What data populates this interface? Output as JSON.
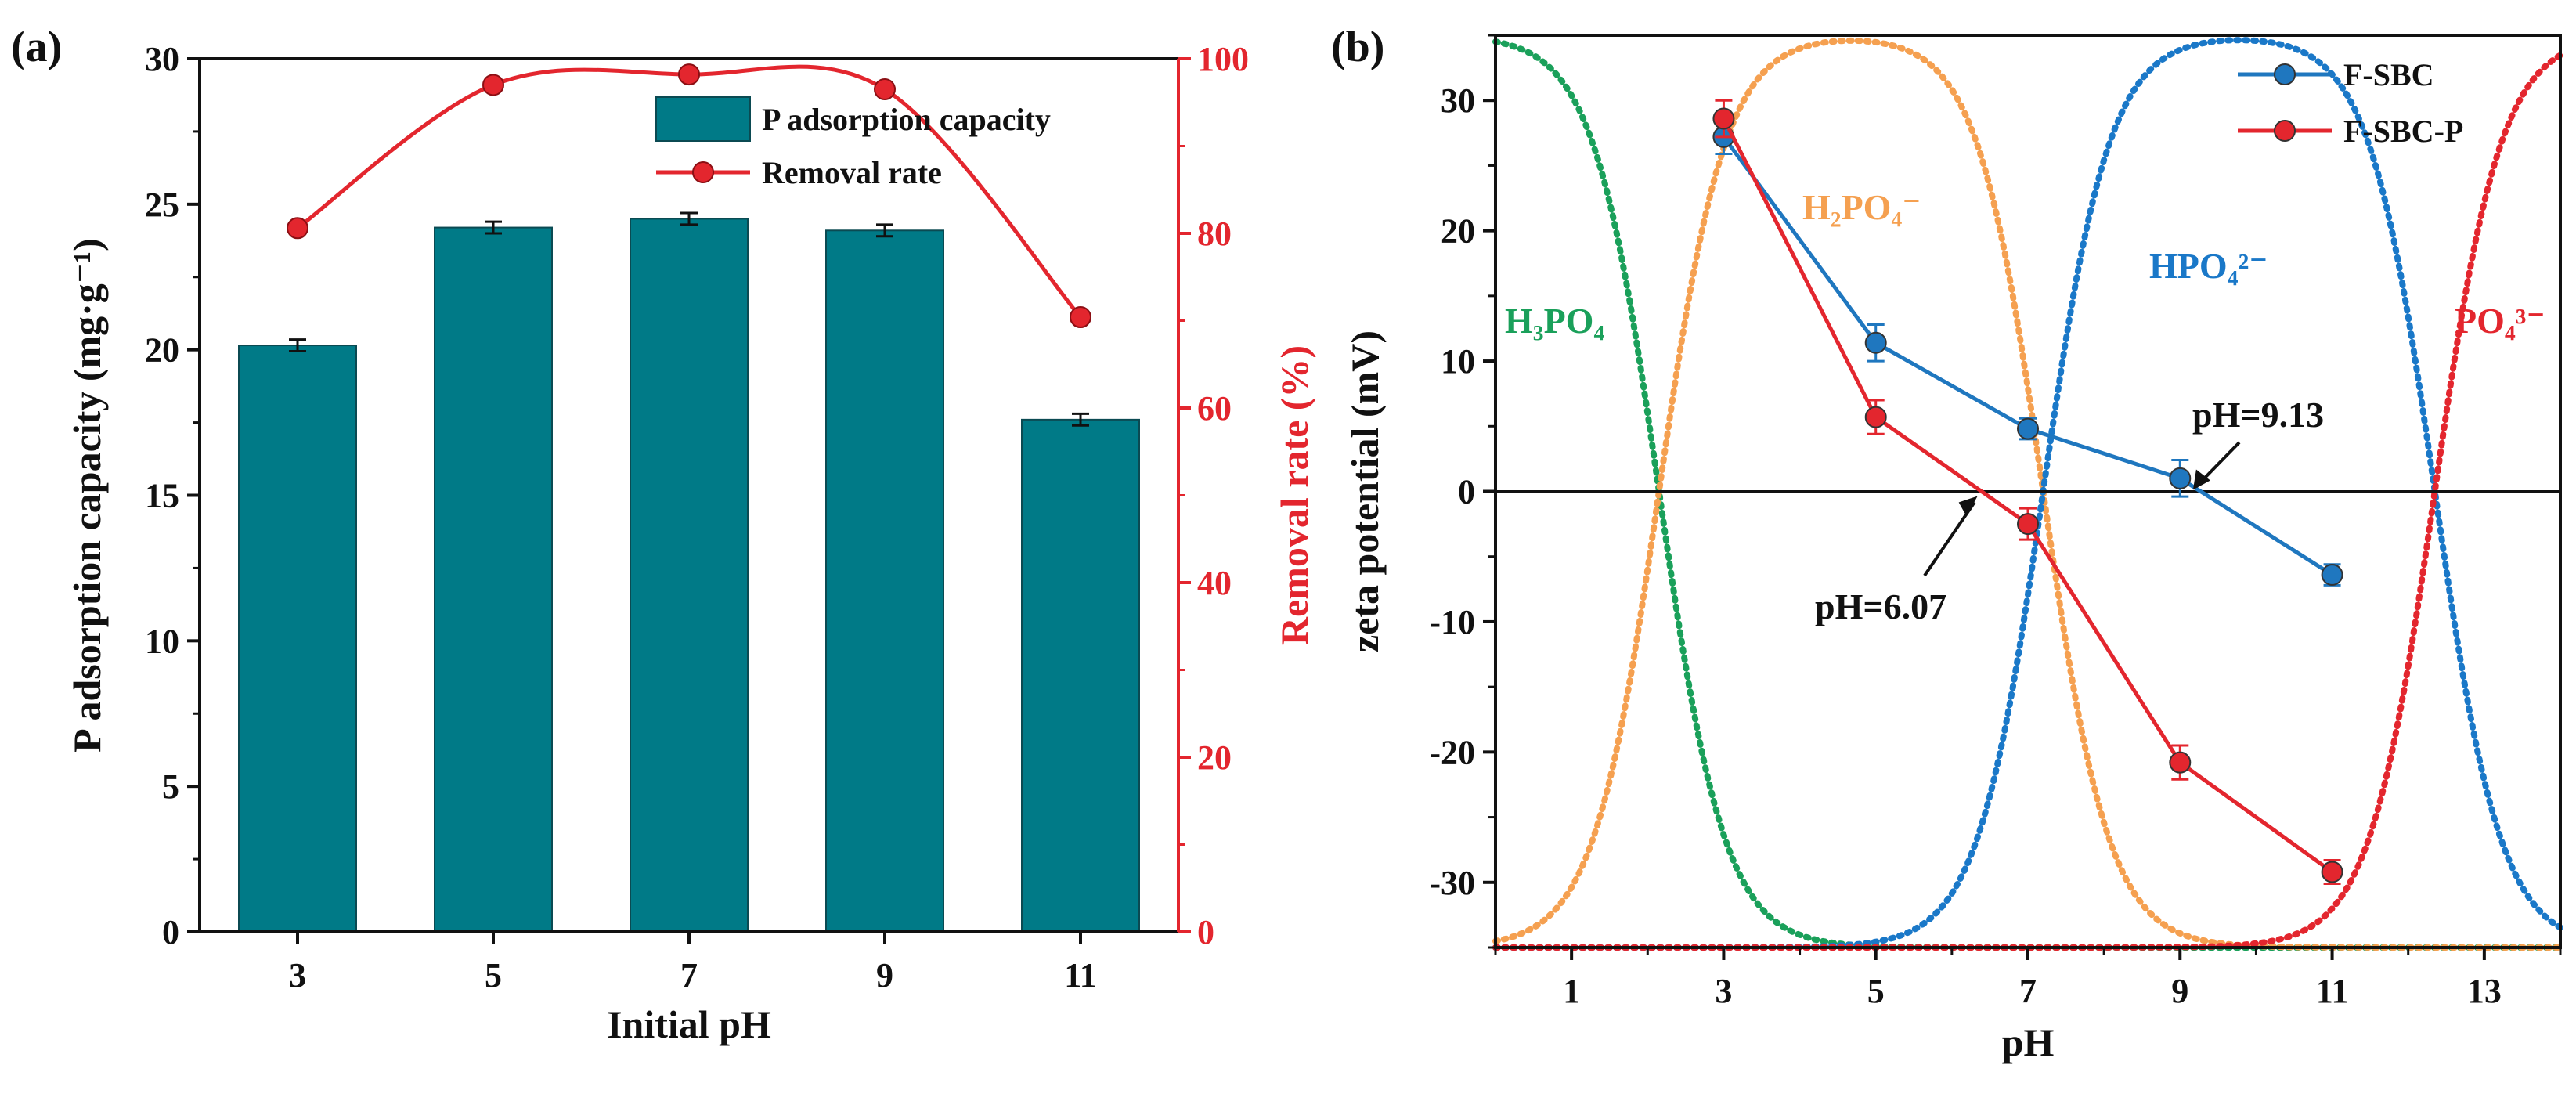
{
  "chart_data": [
    {
      "panel": "(a)",
      "type": "bar",
      "xlabel": "Initial pH",
      "ylabel": "P adsorption capacity (mg·g⁻¹)",
      "y2label": "Removal rate (%)",
      "categories": [
        "3",
        "5",
        "7",
        "9",
        "11"
      ],
      "ylim": [
        0,
        30
      ],
      "y2lim": [
        0,
        100
      ],
      "yticks": [
        0,
        5,
        10,
        15,
        20,
        25,
        30
      ],
      "y2ticks": [
        0,
        20,
        40,
        60,
        80,
        100
      ],
      "legend_position": "top-right",
      "series": [
        {
          "name": "P adsorption capacity",
          "kind": "bar",
          "axis": "left",
          "color": "#007a87",
          "values": [
            20.15,
            24.2,
            24.5,
            24.1,
            17.6
          ],
          "errors": [
            0.2,
            0.2,
            0.2,
            0.2,
            0.2
          ]
        },
        {
          "name": "Removal rate",
          "kind": "line",
          "axis": "right",
          "color": "#e3262e",
          "values": [
            80.6,
            97.0,
            98.2,
            96.5,
            70.4
          ]
        }
      ]
    },
    {
      "panel": "(b)",
      "type": "line",
      "xlabel": "pH",
      "ylabel": "zeta potential (mV)",
      "xlim": [
        0,
        14
      ],
      "ylim": [
        -35,
        35
      ],
      "xticks": [
        1,
        3,
        5,
        7,
        9,
        11,
        13
      ],
      "yticks": [
        -30,
        -20,
        -10,
        0,
        10,
        20,
        30
      ],
      "legend_position": "top-right",
      "series": [
        {
          "name": "F-SBC",
          "color": "#1f77bf",
          "x": [
            3,
            5,
            7,
            9,
            11
          ],
          "y": [
            27.2,
            11.4,
            4.8,
            1.0,
            -6.4
          ],
          "errors": [
            1.3,
            1.4,
            0.8,
            1.4,
            0.8
          ]
        },
        {
          "name": "F-SBC-P",
          "color": "#e3262e",
          "x": [
            3,
            5,
            7,
            9,
            11
          ],
          "y": [
            28.6,
            5.7,
            -2.5,
            -20.8,
            -29.2
          ],
          "errors": [
            1.4,
            1.3,
            1.2,
            1.3,
            0.9
          ]
        }
      ],
      "species_curves": [
        {
          "label": "H₃PO₄",
          "color": "#1aa05a",
          "pKa_low": null,
          "pKa_high": 2.15
        },
        {
          "label": "H₂PO₄⁻",
          "color": "#f5a050",
          "pKa_low": 2.15,
          "pKa_high": 7.2
        },
        {
          "label": "HPO₄²⁻",
          "color": "#1a78c8",
          "pKa_low": 7.2,
          "pKa_high": 12.35
        },
        {
          "label": "PO₄³⁻",
          "color": "#e3262e",
          "pKa_low": 12.35,
          "pKa_high": null
        }
      ],
      "annotations": [
        {
          "text": "pH=9.13",
          "x": 9.13,
          "y": 0
        },
        {
          "text": "pH=6.07",
          "x": 6.07,
          "y": 0
        }
      ]
    }
  ]
}
